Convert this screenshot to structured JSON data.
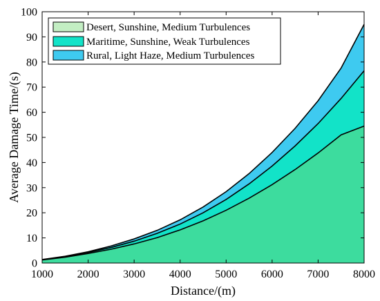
{
  "chart_data": {
    "type": "area",
    "title": "",
    "xlabel": "Distance/(m)",
    "ylabel": "Average Damage Time/(s)",
    "xlim": [
      1000,
      8000
    ],
    "ylim": [
      0,
      100
    ],
    "xticks": [
      1000,
      2000,
      3000,
      4000,
      5000,
      6000,
      7000,
      8000
    ],
    "yticks": [
      0,
      10,
      20,
      30,
      40,
      50,
      60,
      70,
      80,
      90,
      100
    ],
    "grid": false,
    "legend_position": "top-left",
    "x": [
      1000,
      1500,
      2000,
      2500,
      3000,
      3500,
      4000,
      4500,
      5000,
      5500,
      6000,
      6500,
      7000,
      7500,
      8000
    ],
    "series": [
      {
        "name": "Desert, Sunshine, Medium Turbulences",
        "legend_color": "#c3eec3",
        "values": [
          1.2,
          2.3,
          3.8,
          5.5,
          7.6,
          10.1,
          13.2,
          16.8,
          21.0,
          25.8,
          31.2,
          37.2,
          43.8,
          51.0,
          54.5
        ]
      },
      {
        "name": "Maritime, Sunshine, Weak Turbulences",
        "legend_color": "#12e3c8",
        "values": [
          1.3,
          2.5,
          4.2,
          6.2,
          8.7,
          11.8,
          15.5,
          20.0,
          25.3,
          31.5,
          38.6,
          46.6,
          55.5,
          65.5,
          76.5
        ]
      },
      {
        "name": "Rural, Light Haze, Medium Turbulences",
        "legend_color": "#3ecaf0",
        "values": [
          1.4,
          2.7,
          4.5,
          6.8,
          9.6,
          13.0,
          17.2,
          22.3,
          28.4,
          35.6,
          44.0,
          53.6,
          64.6,
          77.6,
          95.0
        ]
      }
    ],
    "fill_colors": {
      "below_lowest_curve": "#3ddc9e",
      "band_1_to_2": "#12e3c8",
      "band_2_to_3": "#3ecaf0",
      "curve_line": "#000000"
    }
  }
}
